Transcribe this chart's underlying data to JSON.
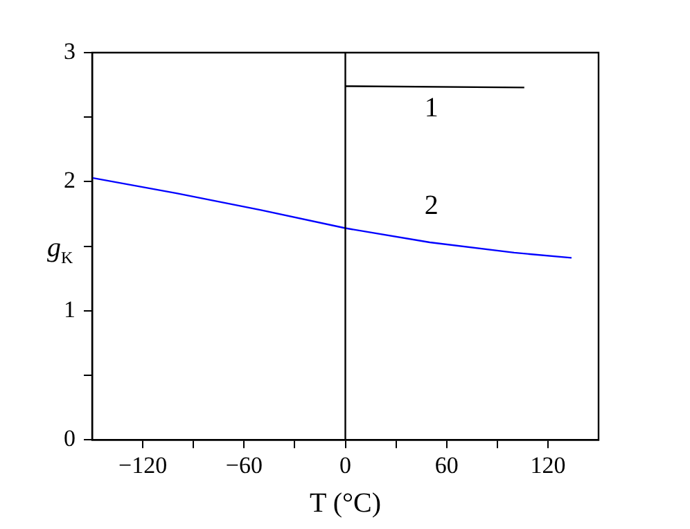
{
  "chart_data": {
    "type": "line",
    "xlabel": "T (°C)",
    "ylabel": "g$_{K}$",
    "xlim": [
      -150,
      150
    ],
    "ylim": [
      0,
      3
    ],
    "xticks": [
      {
        "value": -120,
        "label": "−120"
      },
      {
        "value": -90,
        "label": null
      },
      {
        "value": -60,
        "label": "−60"
      },
      {
        "value": -30,
        "label": null
      },
      0,
      {
        "value": 30,
        "label": null
      },
      60,
      {
        "value": 90,
        "label": null
      },
      120
    ],
    "yticks": [
      0,
      {
        "value": 0.5,
        "label": null
      },
      1,
      {
        "value": 1.5,
        "label": null
      },
      2,
      {
        "value": 2.5,
        "label": null
      },
      3
    ],
    "grid": false,
    "legend": false,
    "marker": "none",
    "line_style": "solid",
    "series": [
      {
        "name": "1",
        "color": "#000000",
        "x": [
          0,
          106
        ],
        "values": [
          2.74,
          2.73
        ]
      },
      {
        "name": "2",
        "color": "#0000ff",
        "x": [
          -150,
          -100,
          -50,
          0,
          50,
          100,
          134
        ],
        "values": [
          2.03,
          1.91,
          1.78,
          1.64,
          1.53,
          1.45,
          1.41
        ]
      }
    ],
    "ref_lines": [
      {
        "axis": "x",
        "value": 0,
        "color": "#000000"
      }
    ]
  }
}
